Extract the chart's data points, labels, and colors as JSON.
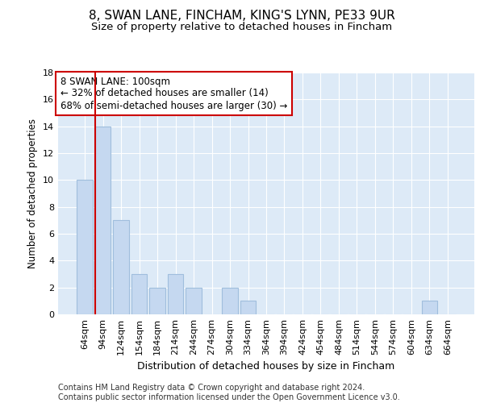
{
  "title1": "8, SWAN LANE, FINCHAM, KING'S LYNN, PE33 9UR",
  "title2": "Size of property relative to detached houses in Fincham",
  "xlabel": "Distribution of detached houses by size in Fincham",
  "ylabel": "Number of detached properties",
  "categories": [
    "64sqm",
    "94sqm",
    "124sqm",
    "154sqm",
    "184sqm",
    "214sqm",
    "244sqm",
    "274sqm",
    "304sqm",
    "334sqm",
    "364sqm",
    "394sqm",
    "424sqm",
    "454sqm",
    "484sqm",
    "514sqm",
    "544sqm",
    "574sqm",
    "604sqm",
    "634sqm",
    "664sqm"
  ],
  "values": [
    10,
    14,
    7,
    3,
    2,
    3,
    2,
    0,
    2,
    1,
    0,
    0,
    0,
    0,
    0,
    0,
    0,
    0,
    0,
    1,
    0
  ],
  "bar_color": "#c5d8f0",
  "bar_edgecolor": "#a0bedd",
  "redline_index": 1,
  "annotation_line1": "8 SWAN LANE: 100sqm",
  "annotation_line2": "← 32% of detached houses are smaller (14)",
  "annotation_line3": "68% of semi-detached houses are larger (30) →",
  "annotation_box_color": "#ffffff",
  "annotation_box_edgecolor": "#cc0000",
  "ylim": [
    0,
    18
  ],
  "yticks": [
    0,
    2,
    4,
    6,
    8,
    10,
    12,
    14,
    16,
    18
  ],
  "plot_bg_color": "#ddeaf7",
  "grid_color": "#ffffff",
  "footer_line1": "Contains HM Land Registry data © Crown copyright and database right 2024.",
  "footer_line2": "Contains public sector information licensed under the Open Government Licence v3.0.",
  "title1_fontsize": 11,
  "title2_fontsize": 9.5,
  "xlabel_fontsize": 9,
  "ylabel_fontsize": 8.5,
  "tick_fontsize": 8,
  "annotation_fontsize": 8.5,
  "footer_fontsize": 7
}
